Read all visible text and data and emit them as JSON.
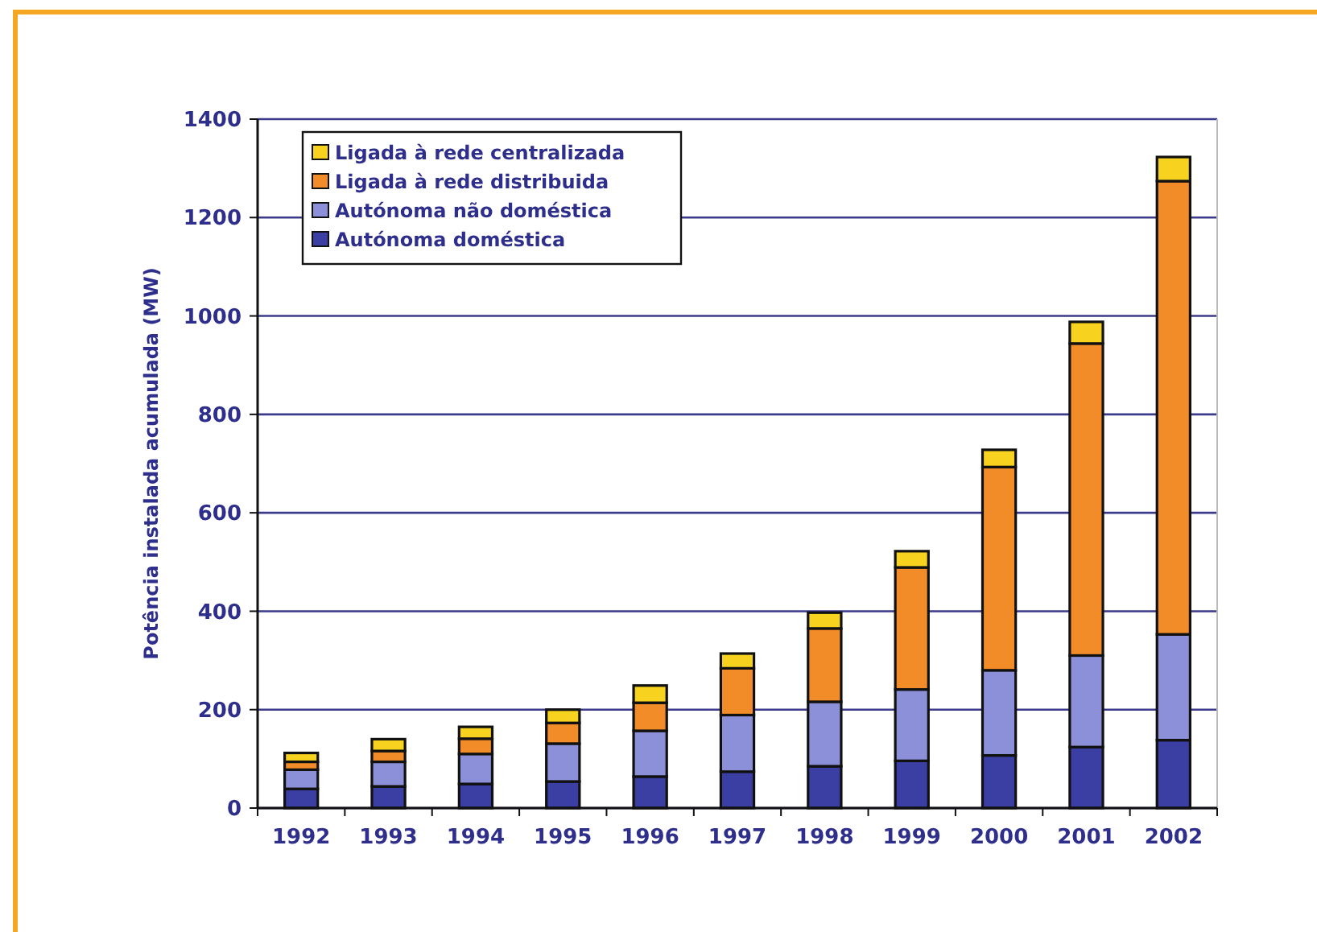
{
  "chart_data": {
    "type": "bar",
    "stacked": true,
    "ylabel": "Potência instalada acumulada (MW)",
    "categories": [
      "1992",
      "1993",
      "1994",
      "1995",
      "1996",
      "1997",
      "1998",
      "1999",
      "2000",
      "2001",
      "2002"
    ],
    "series": [
      {
        "name": "Autónoma doméstica",
        "color": "#3b3fa3",
        "values": [
          39,
          44,
          49,
          54,
          64,
          74,
          85,
          96,
          107,
          124,
          138
        ]
      },
      {
        "name": "Autónoma não doméstica",
        "color": "#8c90d8",
        "values": [
          39,
          50,
          61,
          77,
          93,
          115,
          131,
          145,
          173,
          186,
          215
        ]
      },
      {
        "name": "Ligada à rede distribuida",
        "color": "#f28c28",
        "values": [
          16,
          22,
          31,
          42,
          57,
          95,
          149,
          248,
          413,
          634,
          921
        ]
      },
      {
        "name": "Ligada à rede centralizada",
        "color": "#f7d21e",
        "values": [
          18,
          24,
          24,
          27,
          35,
          30,
          32,
          33,
          35,
          44,
          49
        ]
      }
    ],
    "ylim": [
      0,
      1400
    ],
    "yticks": [
      0,
      200,
      400,
      600,
      800,
      1000,
      1200,
      1400
    ],
    "grid": "y",
    "legend": "top left"
  }
}
